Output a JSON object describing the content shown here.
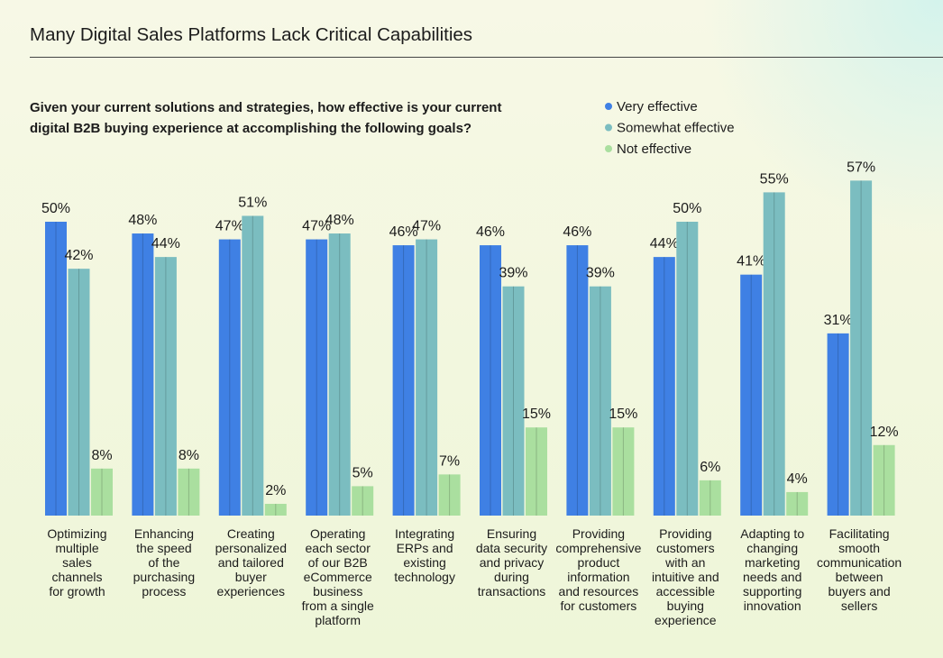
{
  "chart_data": {
    "type": "bar",
    "title": "Many Digital Sales Platforms Lack Critical Capabilities",
    "subtitle": [
      "Given your current solutions and strategies, how effective is your current",
      "digital B2B buying experience at accomplishing the following goals?"
    ],
    "categories": [
      [
        "Optimizing",
        "multiple",
        "sales",
        "channels",
        "for growth"
      ],
      [
        "Enhancing",
        "the speed",
        "of the",
        "purchasing",
        "process"
      ],
      [
        "Creating",
        "personalized",
        "and tailored",
        "buyer",
        "experiences"
      ],
      [
        "Operating",
        "each sector",
        "of our B2B",
        "eCommerce",
        "business",
        "from a single",
        "platform"
      ],
      [
        "Integrating",
        "ERPs and",
        "existing",
        "technology"
      ],
      [
        "Ensuring",
        "data security",
        "and privacy",
        "during",
        "transactions"
      ],
      [
        "Providing",
        "comprehensive",
        "product",
        "information",
        "and resources",
        "for customers"
      ],
      [
        "Providing",
        "customers",
        "with an",
        "intuitive and",
        "accessible",
        "buying",
        "experience"
      ],
      [
        "Adapting to",
        "changing",
        "marketing",
        "needs and",
        "supporting",
        "innovation"
      ],
      [
        "Facilitating",
        "smooth",
        "communication",
        "between",
        "buyers and",
        "sellers"
      ]
    ],
    "series": [
      {
        "name": "Very effective",
        "color": "#3f80e4",
        "values": [
          50,
          48,
          47,
          47,
          46,
          46,
          46,
          44,
          41,
          31
        ],
        "value_labels": [
          "50%",
          "48%",
          "47%",
          "47%",
          "46%",
          "46%",
          "46%",
          "44%",
          "41%",
          "31%"
        ]
      },
      {
        "name": "Somewhat effective",
        "color": "#7bbdc0",
        "values": [
          42,
          44,
          51,
          48,
          47,
          39,
          39,
          50,
          55,
          57
        ],
        "value_labels": [
          "42%",
          "44%",
          "51%",
          "48%",
          "47%",
          "39%",
          "39%",
          "50%",
          "55%",
          "57%"
        ]
      },
      {
        "name": "Not effective",
        "color": "#aadf9f",
        "values": [
          8,
          8,
          2,
          5,
          7,
          15,
          15,
          6,
          4,
          12
        ],
        "value_labels": [
          "8%",
          "8%",
          "2%",
          "5%",
          "7%",
          "15%",
          "15%",
          "6%",
          "4%",
          "12%"
        ]
      }
    ]
  }
}
